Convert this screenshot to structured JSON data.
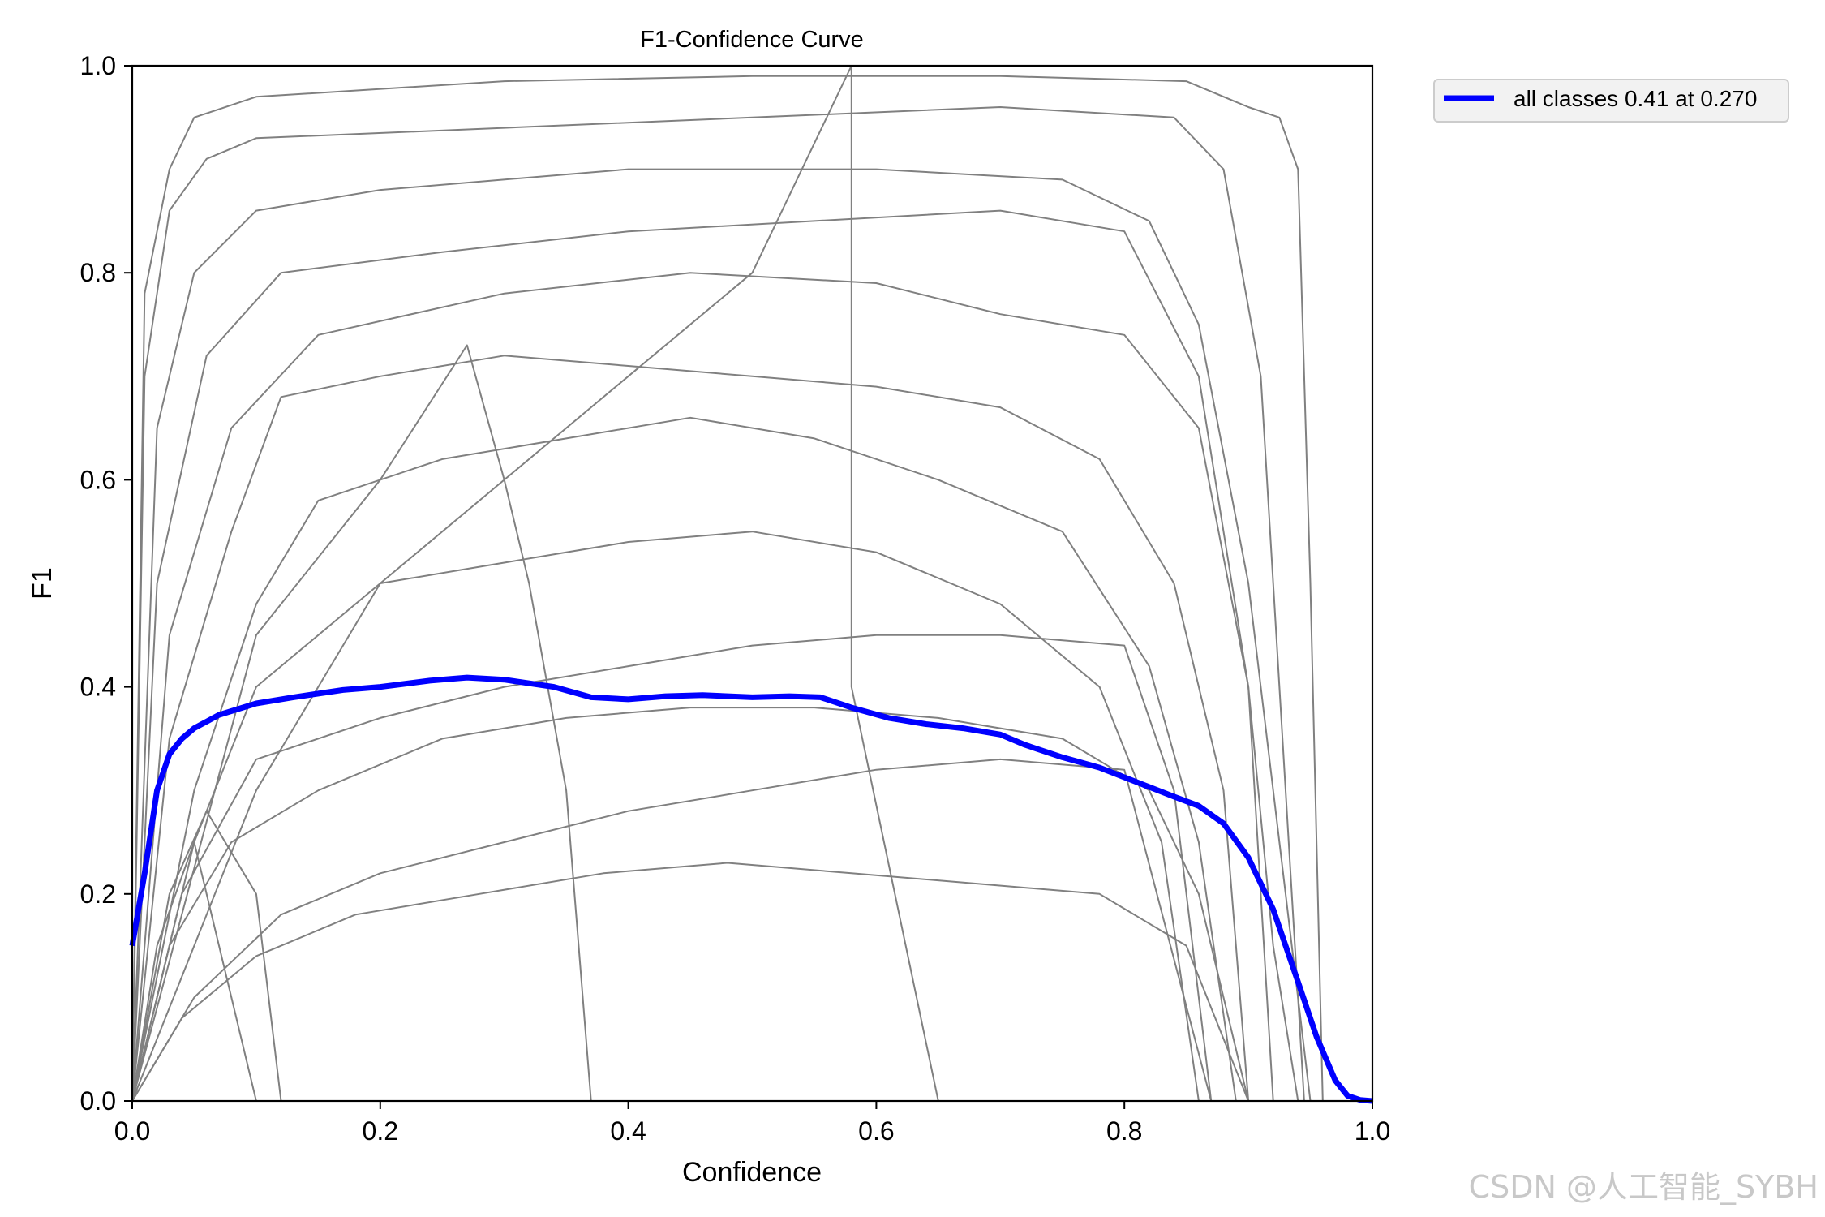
{
  "chart_data": {
    "type": "line",
    "title": "F1-Confidence Curve",
    "xlabel": "Confidence",
    "ylabel": "F1",
    "xlim": [
      0,
      1
    ],
    "ylim": [
      0,
      1
    ],
    "xticks": [
      "0.0",
      "0.2",
      "0.4",
      "0.6",
      "0.8",
      "1.0"
    ],
    "yticks": [
      "0.0",
      "0.2",
      "0.4",
      "0.6",
      "0.8",
      "1.0"
    ],
    "legend_position": "outside-top-right",
    "grid": false,
    "series": [
      {
        "name": "all classes 0.41 at 0.270",
        "color": "#0000ff",
        "x": [
          0,
          0.01,
          0.02,
          0.03,
          0.04,
          0.05,
          0.07,
          0.1,
          0.13,
          0.17,
          0.2,
          0.24,
          0.27,
          0.3,
          0.34,
          0.37,
          0.4,
          0.43,
          0.46,
          0.5,
          0.53,
          0.555,
          0.58,
          0.61,
          0.64,
          0.67,
          0.7,
          0.72,
          0.75,
          0.78,
          0.81,
          0.84,
          0.86,
          0.88,
          0.9,
          0.92,
          0.94,
          0.955,
          0.97,
          0.98,
          0.99,
          1.0
        ],
        "y": [
          0.15,
          0.22,
          0.3,
          0.335,
          0.35,
          0.36,
          0.373,
          0.384,
          0.39,
          0.397,
          0.4,
          0.406,
          0.409,
          0.407,
          0.4,
          0.39,
          0.388,
          0.391,
          0.392,
          0.39,
          0.391,
          0.39,
          0.38,
          0.37,
          0.364,
          0.36,
          0.354,
          0.344,
          0.332,
          0.322,
          0.308,
          0.294,
          0.285,
          0.268,
          0.235,
          0.185,
          0.115,
          0.062,
          0.02,
          0.005,
          0.001,
          0.0
        ]
      },
      {
        "name": "",
        "color": "#808080",
        "x": [
          0,
          0.01,
          0.03,
          0.05,
          0.1,
          0.3,
          0.5,
          0.7,
          0.85,
          0.9,
          0.925,
          0.94,
          0.95,
          0.96
        ],
        "y": [
          0.0,
          0.78,
          0.9,
          0.95,
          0.97,
          0.985,
          0.99,
          0.99,
          0.985,
          0.96,
          0.95,
          0.9,
          0.5,
          0.0
        ]
      },
      {
        "name": "",
        "color": "#808080",
        "x": [
          0,
          0.01,
          0.03,
          0.06,
          0.1,
          0.3,
          0.5,
          0.7,
          0.84,
          0.88,
          0.91,
          0.93,
          0.945
        ],
        "y": [
          0.0,
          0.7,
          0.86,
          0.91,
          0.93,
          0.94,
          0.95,
          0.96,
          0.95,
          0.9,
          0.7,
          0.3,
          0.0
        ]
      },
      {
        "name": "",
        "color": "#808080",
        "x": [
          0,
          0.02,
          0.05,
          0.1,
          0.2,
          0.4,
          0.6,
          0.75,
          0.82,
          0.86,
          0.9,
          0.93,
          0.95
        ],
        "y": [
          0.0,
          0.65,
          0.8,
          0.86,
          0.88,
          0.9,
          0.9,
          0.89,
          0.85,
          0.75,
          0.5,
          0.2,
          0.0
        ]
      },
      {
        "name": "",
        "color": "#808080",
        "x": [
          0,
          0.02,
          0.06,
          0.12,
          0.25,
          0.4,
          0.55,
          0.7,
          0.8,
          0.86,
          0.9,
          0.92
        ],
        "y": [
          0.0,
          0.5,
          0.72,
          0.8,
          0.82,
          0.84,
          0.85,
          0.86,
          0.84,
          0.7,
          0.4,
          0.0
        ]
      },
      {
        "name": "",
        "color": "#808080",
        "x": [
          0,
          0.03,
          0.08,
          0.15,
          0.3,
          0.45,
          0.6,
          0.7,
          0.8,
          0.86,
          0.9,
          0.92,
          0.94
        ],
        "y": [
          0.0,
          0.45,
          0.65,
          0.74,
          0.78,
          0.8,
          0.79,
          0.76,
          0.74,
          0.65,
          0.4,
          0.15,
          0.0
        ]
      },
      {
        "name": "",
        "color": "#808080",
        "x": [
          0,
          0.03,
          0.08,
          0.12,
          0.2,
          0.3,
          0.4,
          0.5,
          0.6,
          0.7,
          0.78,
          0.84,
          0.88,
          0.9
        ],
        "y": [
          0.0,
          0.35,
          0.55,
          0.68,
          0.7,
          0.72,
          0.71,
          0.7,
          0.69,
          0.67,
          0.62,
          0.5,
          0.3,
          0.0
        ]
      },
      {
        "name": "",
        "color": "#808080",
        "x": [
          0,
          0.05,
          0.1,
          0.15,
          0.25,
          0.35,
          0.45,
          0.55,
          0.65,
          0.75,
          0.82,
          0.86,
          0.89
        ],
        "y": [
          0.0,
          0.3,
          0.48,
          0.58,
          0.62,
          0.64,
          0.66,
          0.64,
          0.6,
          0.55,
          0.42,
          0.25,
          0.0
        ]
      },
      {
        "name": "",
        "color": "#808080",
        "x": [
          0,
          0.05,
          0.1,
          0.2,
          0.3,
          0.4,
          0.5,
          0.6,
          0.7,
          0.78,
          0.83,
          0.86
        ],
        "y": [
          0.0,
          0.25,
          0.4,
          0.5,
          0.52,
          0.54,
          0.55,
          0.53,
          0.48,
          0.4,
          0.25,
          0.0
        ]
      },
      {
        "name": "",
        "color": "#808080",
        "x": [
          0,
          0.04,
          0.1,
          0.2,
          0.3,
          0.4,
          0.5,
          0.6,
          0.7,
          0.8,
          0.84,
          0.87
        ],
        "y": [
          0.0,
          0.2,
          0.33,
          0.37,
          0.4,
          0.42,
          0.44,
          0.45,
          0.45,
          0.44,
          0.3,
          0.0
        ]
      },
      {
        "name": "",
        "color": "#808080",
        "x": [
          0,
          0.03,
          0.08,
          0.15,
          0.25,
          0.35,
          0.45,
          0.55,
          0.65,
          0.75,
          0.82,
          0.86,
          0.9
        ],
        "y": [
          0.0,
          0.15,
          0.25,
          0.3,
          0.35,
          0.37,
          0.38,
          0.38,
          0.37,
          0.35,
          0.3,
          0.2,
          0.0
        ]
      },
      {
        "name": "",
        "color": "#808080",
        "x": [
          0,
          0.05,
          0.12,
          0.2,
          0.3,
          0.4,
          0.5,
          0.6,
          0.7,
          0.8,
          0.87
        ],
        "y": [
          0.0,
          0.1,
          0.18,
          0.22,
          0.25,
          0.28,
          0.3,
          0.32,
          0.33,
          0.32,
          0.0
        ]
      },
      {
        "name": "",
        "color": "#808080",
        "x": [
          0,
          0.04,
          0.1,
          0.18,
          0.28,
          0.38,
          0.48,
          0.58,
          0.68,
          0.78,
          0.85,
          0.9
        ],
        "y": [
          0.0,
          0.08,
          0.14,
          0.18,
          0.2,
          0.22,
          0.23,
          0.22,
          0.21,
          0.2,
          0.15,
          0.0
        ]
      },
      {
        "name": "",
        "color": "#808080",
        "x": [
          0,
          0.03,
          0.06,
          0.1,
          0.12
        ],
        "y": [
          0.0,
          0.2,
          0.28,
          0.2,
          0.0
        ]
      },
      {
        "name": "",
        "color": "#808080",
        "x": [
          0,
          0.02,
          0.05,
          0.08,
          0.1
        ],
        "y": [
          0.0,
          0.15,
          0.25,
          0.1,
          0.0
        ]
      },
      {
        "name": "",
        "color": "#808080",
        "x": [
          0,
          0.1,
          0.2,
          0.3,
          0.4,
          0.5,
          0.58,
          0.58,
          0.65
        ],
        "y": [
          0.0,
          0.3,
          0.5,
          0.6,
          0.7,
          0.8,
          1.0,
          0.4,
          0.0
        ]
      },
      {
        "name": "",
        "color": "#808080",
        "x": [
          0,
          0.1,
          0.2,
          0.27,
          0.3,
          0.32,
          0.35,
          0.37
        ],
        "y": [
          0.0,
          0.45,
          0.6,
          0.73,
          0.6,
          0.5,
          0.3,
          0.0
        ]
      }
    ]
  },
  "watermark": "CSDN @人工智能_SYBH"
}
